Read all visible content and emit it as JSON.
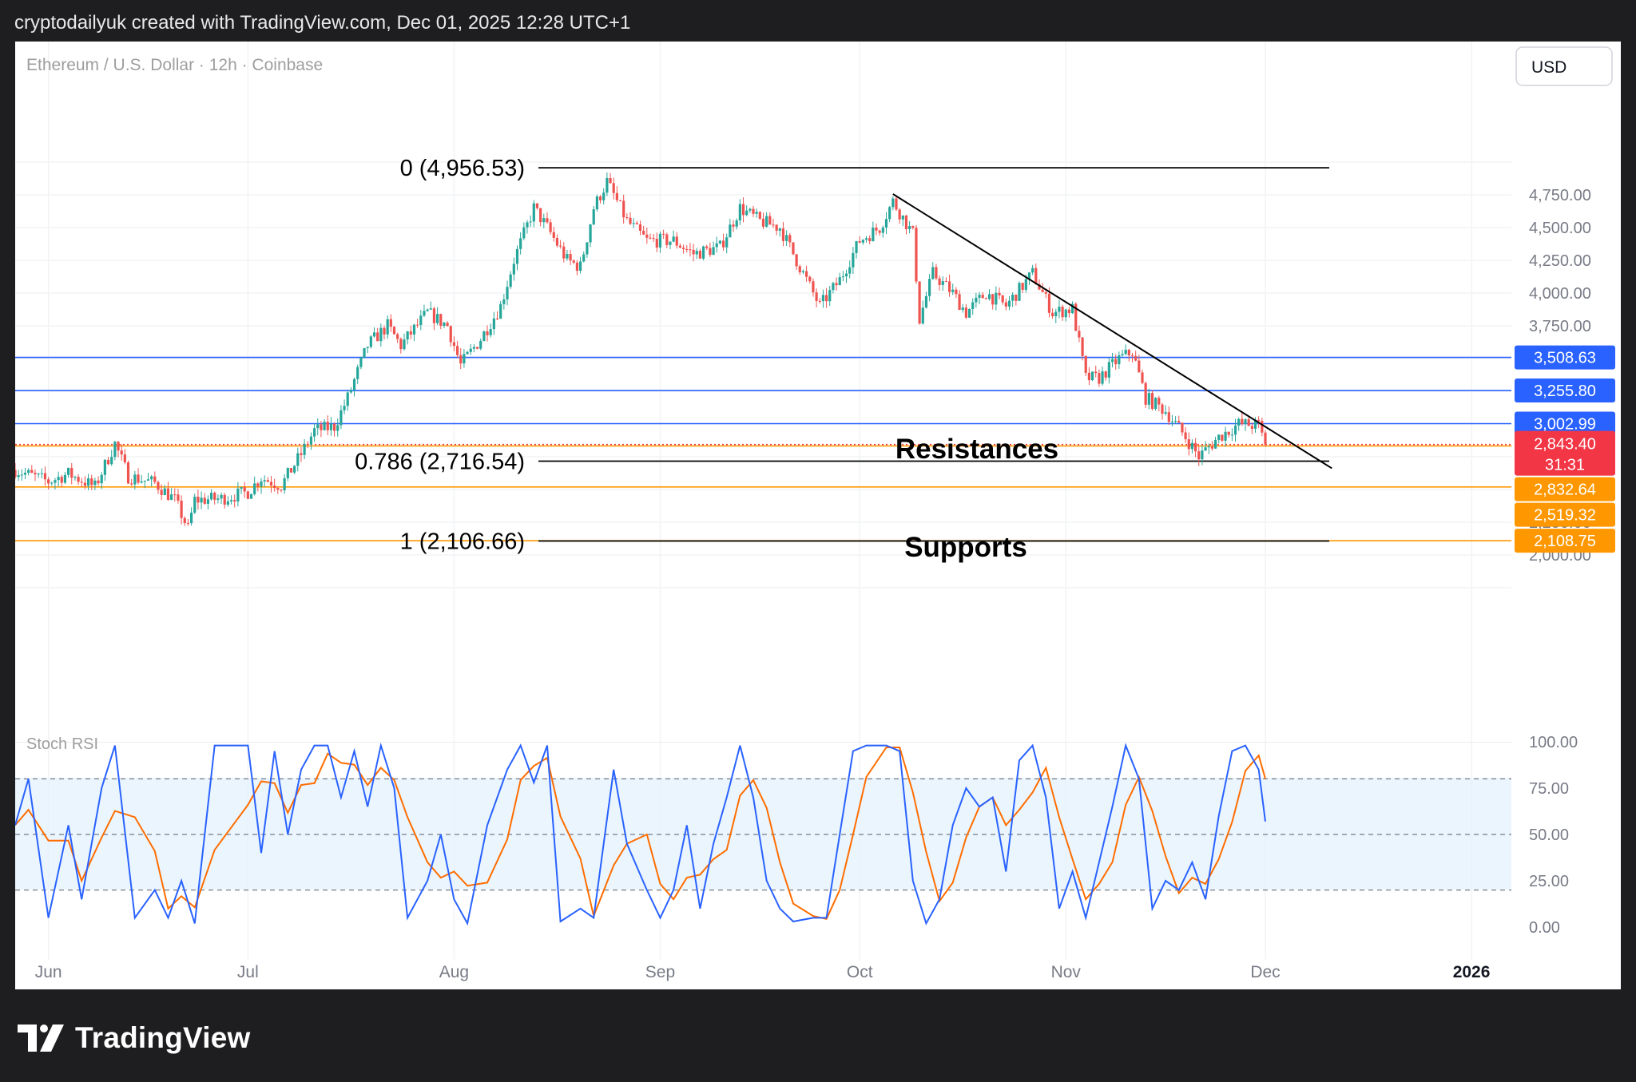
{
  "header": {
    "attribution": "cryptodailyuk created with TradingView.com, Dec 01, 2025 12:28 UTC+1"
  },
  "chart_title": "Ethereum / U.S. Dollar · 12h · Coinbase",
  "currency": "USD",
  "footer": {
    "brand": "TradingView"
  },
  "colors": {
    "up": "#26a69a",
    "down": "#ef5350",
    "resistance": "#2962ff",
    "support": "#ff9800",
    "trend": "#000000",
    "stoch_k": "#2962ff",
    "stoch_d": "#ff6d00",
    "stoch_band": "#e3f2fd",
    "last_price": "#f23645"
  },
  "chart_data": {
    "type": "candlestick",
    "x_labels": [
      "Jun",
      "Jul",
      "Aug",
      "Sep",
      "Oct",
      "Nov",
      "Dec",
      "2026"
    ],
    "x_range": [
      "2025-05-27",
      "2026-01-07"
    ],
    "y_ticks": [
      "4,750.00",
      "4,500.00",
      "4,250.00",
      "4,000.00",
      "3,750.00",
      "2,250.00",
      "2,000.00"
    ],
    "y_range": [
      1500,
      5250
    ],
    "grid": true,
    "approx_path": [
      [
        "2025-05-27",
        2650
      ],
      [
        "2025-06-01",
        2560
      ],
      [
        "2025-06-04",
        2620
      ],
      [
        "2025-06-08",
        2520
      ],
      [
        "2025-06-11",
        2850
      ],
      [
        "2025-06-13",
        2600
      ],
      [
        "2025-06-17",
        2550
      ],
      [
        "2025-06-20",
        2420
      ],
      [
        "2025-06-22",
        2200
      ],
      [
        "2025-06-23",
        2420
      ],
      [
        "2025-06-27",
        2430
      ],
      [
        "2025-07-01",
        2480
      ],
      [
        "2025-07-03",
        2590
      ],
      [
        "2025-07-06",
        2530
      ],
      [
        "2025-07-09",
        2770
      ],
      [
        "2025-07-11",
        2950
      ],
      [
        "2025-07-14",
        2980
      ],
      [
        "2025-07-16",
        3200
      ],
      [
        "2025-07-19",
        3600
      ],
      [
        "2025-07-22",
        3750
      ],
      [
        "2025-07-24",
        3600
      ],
      [
        "2025-07-28",
        3850
      ],
      [
        "2025-07-31",
        3750
      ],
      [
        "2025-08-02",
        3450
      ],
      [
        "2025-08-05",
        3650
      ],
      [
        "2025-08-08",
        3900
      ],
      [
        "2025-08-10",
        4250
      ],
      [
        "2025-08-13",
        4650
      ],
      [
        "2025-08-15",
        4500
      ],
      [
        "2025-08-18",
        4250
      ],
      [
        "2025-08-20",
        4200
      ],
      [
        "2025-08-22",
        4650
      ],
      [
        "2025-08-24",
        4850
      ],
      [
        "2025-08-27",
        4550
      ],
      [
        "2025-08-30",
        4400
      ],
      [
        "2025-09-03",
        4400
      ],
      [
        "2025-09-06",
        4300
      ],
      [
        "2025-09-10",
        4350
      ],
      [
        "2025-09-13",
        4650
      ],
      [
        "2025-09-16",
        4550
      ],
      [
        "2025-09-19",
        4500
      ],
      [
        "2025-09-22",
        4200
      ],
      [
        "2025-09-25",
        3900
      ],
      [
        "2025-09-28",
        4100
      ],
      [
        "2025-10-01",
        4400
      ],
      [
        "2025-10-04",
        4500
      ],
      [
        "2025-10-06",
        4700
      ],
      [
        "2025-10-09",
        4450
      ],
      [
        "2025-10-10",
        3800
      ],
      [
        "2025-10-12",
        4150
      ],
      [
        "2025-10-15",
        4000
      ],
      [
        "2025-10-17",
        3850
      ],
      [
        "2025-10-20",
        4000
      ],
      [
        "2025-10-23",
        3900
      ],
      [
        "2025-10-27",
        4150
      ],
      [
        "2025-10-30",
        3850
      ],
      [
        "2025-11-02",
        3880
      ],
      [
        "2025-11-04",
        3350
      ],
      [
        "2025-11-06",
        3350
      ],
      [
        "2025-11-09",
        3500
      ],
      [
        "2025-11-11",
        3550
      ],
      [
        "2025-11-13",
        3200
      ],
      [
        "2025-11-16",
        3100
      ],
      [
        "2025-11-19",
        2900
      ],
      [
        "2025-11-21",
        2750
      ],
      [
        "2025-11-24",
        2900
      ],
      [
        "2025-11-27",
        3000
      ],
      [
        "2025-11-30",
        2990
      ],
      [
        "2025-12-01",
        2843
      ]
    ],
    "last_price": {
      "value": "2,843.40",
      "countdown": "31:31"
    },
    "horizontal_levels": [
      {
        "label": "3,508.63",
        "kind": "resistance"
      },
      {
        "label": "3,255.80",
        "kind": "resistance"
      },
      {
        "label": "3,002.99",
        "kind": "resistance"
      },
      {
        "label": "2,832.64",
        "kind": "support"
      },
      {
        "label": "2,519.32",
        "kind": "support"
      },
      {
        "label": "2,108.75",
        "kind": "support"
      }
    ],
    "fib_levels": [
      {
        "label": "0 (4,956.53)"
      },
      {
        "label": "0.786 (2,716.54)"
      },
      {
        "label": "1 (2,106.66)"
      }
    ],
    "trendline": {
      "from": [
        "2025-10-06",
        4756
      ],
      "to": [
        "2025-12-11",
        2662
      ]
    },
    "annotations": [
      "Resistances",
      "Supports"
    ],
    "stoch_rsi": {
      "label": "Stoch RSI",
      "y_ticks": [
        "100.00",
        "75.00",
        "50.00",
        "25.00",
        "0.00"
      ],
      "bands": [
        20,
        50,
        80
      ],
      "k_path": [
        [
          "2025-05-27",
          55
        ],
        [
          "2025-05-29",
          80
        ],
        [
          "2025-06-01",
          5
        ],
        [
          "2025-06-04",
          55
        ],
        [
          "2025-06-06",
          15
        ],
        [
          "2025-06-09",
          75
        ],
        [
          "2025-06-11",
          98
        ],
        [
          "2025-06-14",
          5
        ],
        [
          "2025-06-17",
          20
        ],
        [
          "2025-06-19",
          5
        ],
        [
          "2025-06-21",
          25
        ],
        [
          "2025-06-23",
          2
        ],
        [
          "2025-06-26",
          98
        ],
        [
          "2025-07-01",
          98
        ],
        [
          "2025-07-03",
          40
        ],
        [
          "2025-07-05",
          95
        ],
        [
          "2025-07-07",
          50
        ],
        [
          "2025-07-09",
          85
        ],
        [
          "2025-07-11",
          98
        ],
        [
          "2025-07-13",
          98
        ],
        [
          "2025-07-15",
          70
        ],
        [
          "2025-07-17",
          95
        ],
        [
          "2025-07-19",
          65
        ],
        [
          "2025-07-21",
          98
        ],
        [
          "2025-07-23",
          75
        ],
        [
          "2025-07-25",
          5
        ],
        [
          "2025-07-28",
          25
        ],
        [
          "2025-07-30",
          50
        ],
        [
          "2025-08-01",
          15
        ],
        [
          "2025-08-03",
          2
        ],
        [
          "2025-08-06",
          55
        ],
        [
          "2025-08-09",
          85
        ],
        [
          "2025-08-11",
          98
        ],
        [
          "2025-08-13",
          78
        ],
        [
          "2025-08-15",
          98
        ],
        [
          "2025-08-17",
          3
        ],
        [
          "2025-08-20",
          10
        ],
        [
          "2025-08-22",
          5
        ],
        [
          "2025-08-25",
          85
        ],
        [
          "2025-08-27",
          45
        ],
        [
          "2025-08-30",
          20
        ],
        [
          "2025-09-01",
          5
        ],
        [
          "2025-09-03",
          20
        ],
        [
          "2025-09-05",
          55
        ],
        [
          "2025-09-07",
          10
        ],
        [
          "2025-09-09",
          45
        ],
        [
          "2025-09-11",
          70
        ],
        [
          "2025-09-13",
          98
        ],
        [
          "2025-09-15",
          70
        ],
        [
          "2025-09-17",
          25
        ],
        [
          "2025-09-19",
          10
        ],
        [
          "2025-09-21",
          3
        ],
        [
          "2025-09-24",
          5
        ],
        [
          "2025-09-26",
          5
        ],
        [
          "2025-09-28",
          50
        ],
        [
          "2025-09-30",
          95
        ],
        [
          "2025-10-02",
          98
        ],
        [
          "2025-10-05",
          98
        ],
        [
          "2025-10-07",
          95
        ],
        [
          "2025-10-09",
          25
        ],
        [
          "2025-10-11",
          2
        ],
        [
          "2025-10-13",
          15
        ],
        [
          "2025-10-15",
          55
        ],
        [
          "2025-10-17",
          75
        ],
        [
          "2025-10-19",
          65
        ],
        [
          "2025-10-21",
          70
        ],
        [
          "2025-10-23",
          30
        ],
        [
          "2025-10-25",
          90
        ],
        [
          "2025-10-27",
          98
        ],
        [
          "2025-10-29",
          70
        ],
        [
          "2025-10-31",
          10
        ],
        [
          "2025-11-02",
          30
        ],
        [
          "2025-11-04",
          5
        ],
        [
          "2025-11-06",
          35
        ],
        [
          "2025-11-08",
          65
        ],
        [
          "2025-11-10",
          98
        ],
        [
          "2025-11-12",
          80
        ],
        [
          "2025-11-14",
          10
        ],
        [
          "2025-11-16",
          25
        ],
        [
          "2025-11-18",
          20
        ],
        [
          "2025-11-20",
          35
        ],
        [
          "2025-11-22",
          15
        ],
        [
          "2025-11-24",
          60
        ],
        [
          "2025-11-26",
          95
        ],
        [
          "2025-11-28",
          98
        ],
        [
          "2025-11-30",
          85
        ],
        [
          "2025-12-01",
          57
        ]
      ]
    }
  }
}
